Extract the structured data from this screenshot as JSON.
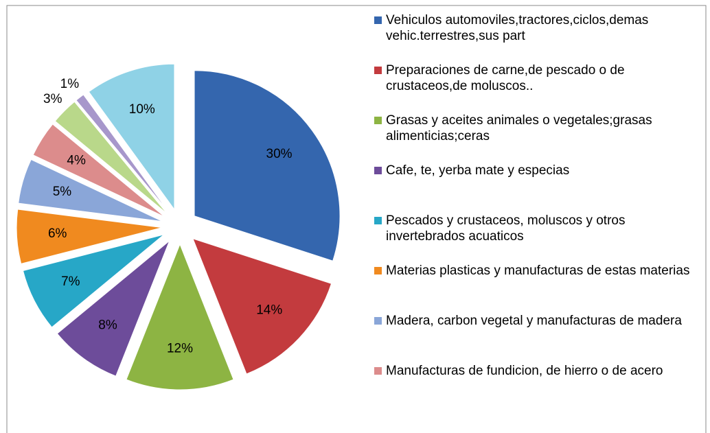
{
  "chart_data": {
    "type": "pie",
    "categories": [
      "Vehiculos automoviles,tractores,ciclos,demas vehic.terrestres,sus part",
      "Preparaciones de carne,de pescado o de crustaceos,de moluscos..",
      "Grasas y aceites animales o vegetales;grasas alimenticias;ceras",
      "Cafe, te, yerba mate y especias",
      "Pescados y crustaceos, moluscos y otros invertebrados acuaticos",
      "Materias plasticas y manufacturas de estas materias",
      "Madera, carbon vegetal y manufacturas de madera",
      "Manufacturas de fundicion, de hierro o de acero",
      null,
      null,
      null
    ],
    "values": [
      30,
      14,
      12,
      8,
      7,
      6,
      5,
      4,
      3,
      1,
      10
    ],
    "value_labels": [
      "30%",
      "14%",
      "12%",
      "8%",
      "7%",
      "6%",
      "5%",
      "4%",
      "3%",
      "1%",
      "10%"
    ],
    "colors": [
      "#3466ae",
      "#c33b3e",
      "#8db443",
      "#6d4c9a",
      "#27a7c7",
      "#f08a1f",
      "#8aa6d8",
      "#dc8c8c",
      "#b9d88a",
      "#a797cb",
      "#8fd2e6"
    ]
  }
}
